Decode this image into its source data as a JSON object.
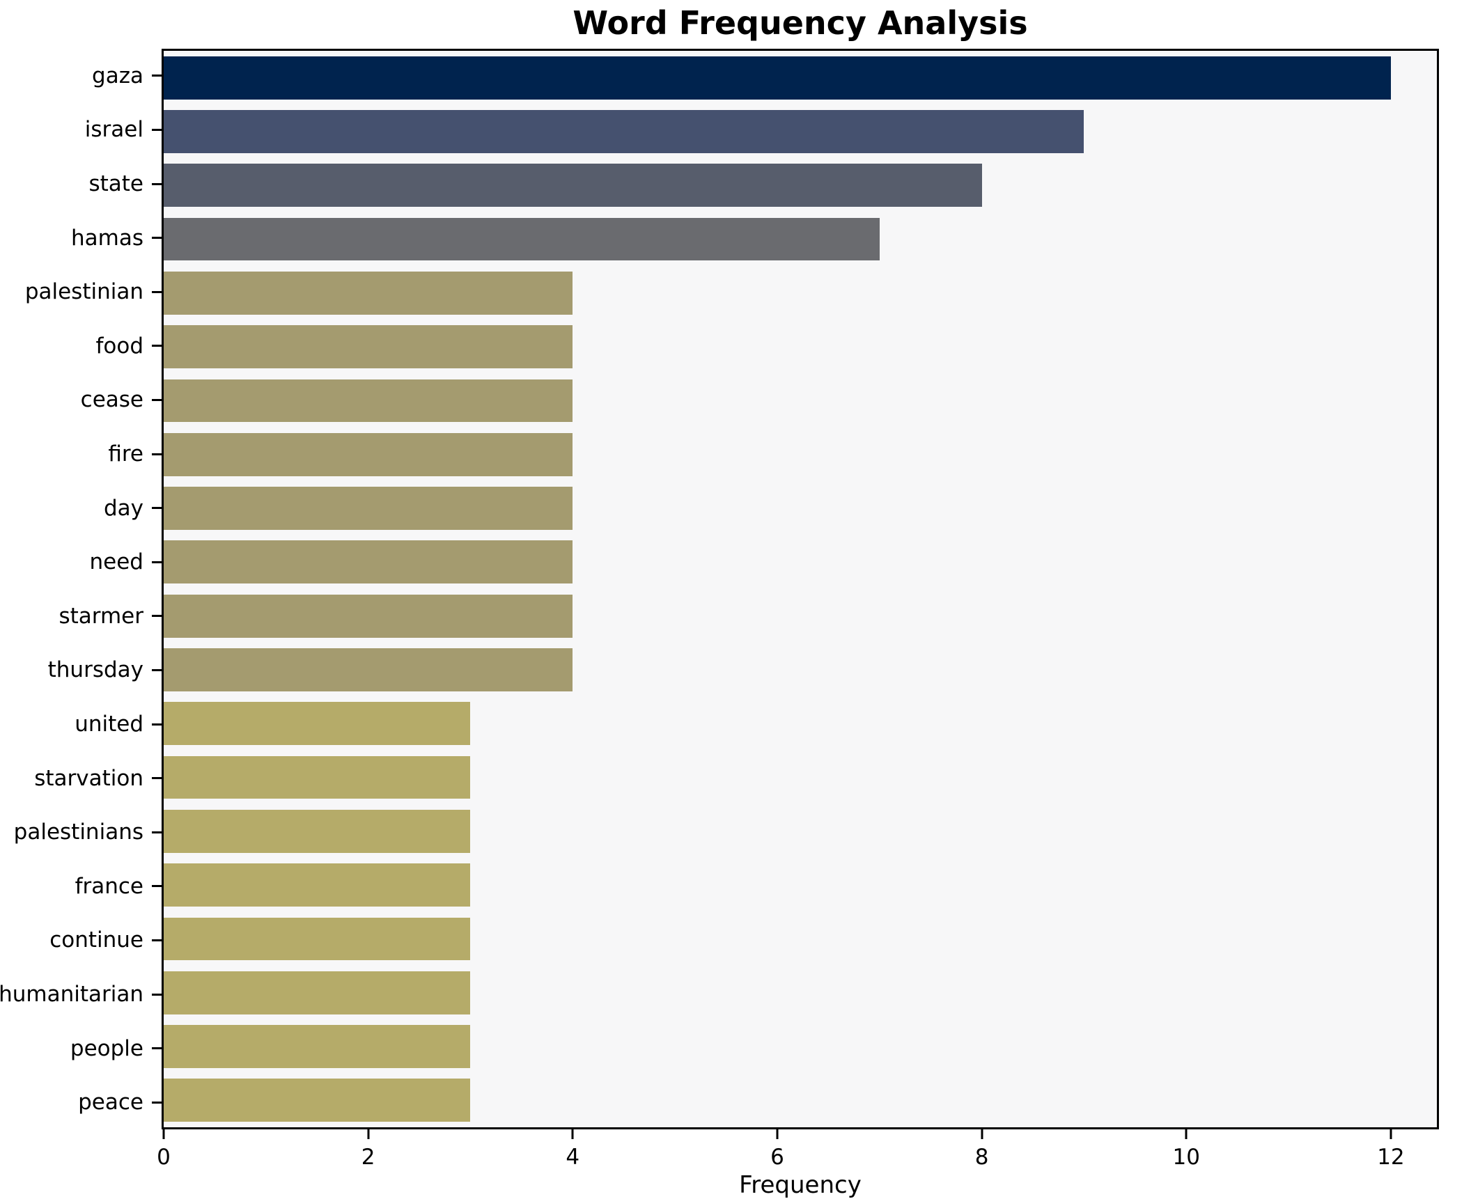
{
  "chart_data": {
    "type": "bar",
    "orientation": "horizontal",
    "title": "Word Frequency Analysis",
    "xlabel": "Frequency",
    "ylabel": "",
    "categories": [
      "gaza",
      "israel",
      "state",
      "hamas",
      "palestinian",
      "food",
      "cease",
      "fire",
      "day",
      "need",
      "starmer",
      "thursday",
      "united",
      "starvation",
      "palestinians",
      "france",
      "continue",
      "humanitarian",
      "people",
      "peace"
    ],
    "values": [
      12,
      9,
      8,
      7,
      4,
      4,
      4,
      4,
      4,
      4,
      4,
      4,
      3,
      3,
      3,
      3,
      3,
      3,
      3,
      3
    ],
    "bar_colors": [
      "#00234e",
      "#45516f",
      "#575d6c",
      "#6a6b6f",
      "#a49b6f",
      "#a49b6f",
      "#a49b6f",
      "#a49b6f",
      "#a49b6f",
      "#a49b6f",
      "#a49b6f",
      "#a49b6f",
      "#b5ab69",
      "#b5ab69",
      "#b5ab69",
      "#b5ab69",
      "#b5ab69",
      "#b5ab69",
      "#b5ab69",
      "#b5ab69"
    ],
    "xticks": [
      0,
      2,
      4,
      6,
      8,
      10,
      12
    ],
    "xlim": [
      0,
      12.45
    ],
    "grid": false,
    "legend": null,
    "plot_bg": "#f7f7f8",
    "spine_color": "#000000",
    "bar_fraction": 0.8
  }
}
